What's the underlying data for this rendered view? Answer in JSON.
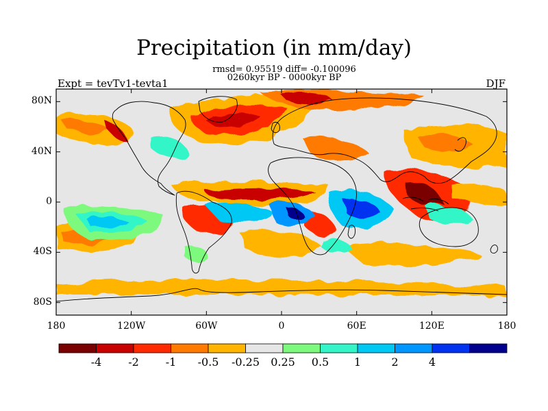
{
  "title": "Precipitation (in mm/day)",
  "stats_line": "rmsd= 0.95519 diff= -0.100096",
  "period_line": "0260kyr BP - 0000kyr BP",
  "experiment_label": "Expt = tevTv1-tevta1",
  "season_label": "DJF",
  "y_ticks": [
    {
      "label": "80N",
      "lat": 80
    },
    {
      "label": "40N",
      "lat": 40
    },
    {
      "label": "0",
      "lat": 0
    },
    {
      "label": "40S",
      "lat": -40
    },
    {
      "label": "80S",
      "lat": -80
    }
  ],
  "x_ticks": [
    {
      "label": "180",
      "lon": -180
    },
    {
      "label": "120W",
      "lon": -120
    },
    {
      "label": "60W",
      "lon": -60
    },
    {
      "label": "0",
      "lon": 0
    },
    {
      "label": "60E",
      "lon": 60
    },
    {
      "label": "120E",
      "lon": 120
    },
    {
      "label": "180",
      "lon": 180
    }
  ],
  "colorbar": {
    "colors": [
      "#7a0000",
      "#c80000",
      "#ff2a00",
      "#ff7a00",
      "#ffb400",
      "#e6e6e6",
      "#7dfa7d",
      "#33f5c8",
      "#00c8f5",
      "#0096ff",
      "#0032f0",
      "#00008c"
    ],
    "labels": [
      "-4",
      "-2",
      "-1",
      "-0.5",
      "-0.25",
      "0.25",
      "0.5",
      "1",
      "2",
      "4"
    ]
  },
  "map": {
    "lon_range": [
      -180,
      180
    ],
    "lat_range": [
      -90,
      90
    ],
    "background_color": "#e6e6e6",
    "coastline_color": "#000000"
  }
}
